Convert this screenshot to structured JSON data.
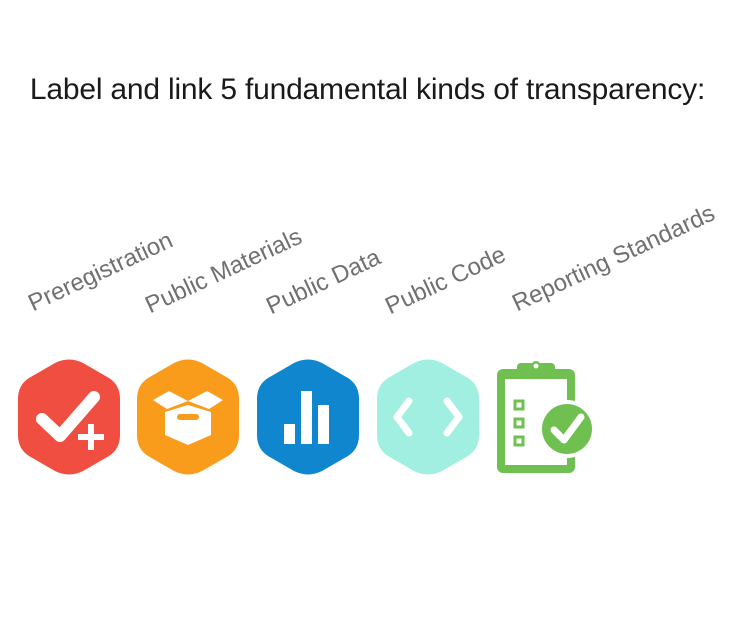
{
  "heading": "Label and link 5 fundamental kinds of transparency:",
  "badges": [
    {
      "label": "Preregistration",
      "icon": "preregistration-check-plus-icon",
      "color": "#ef4e40"
    },
    {
      "label": "Public Materials",
      "icon": "open-box-icon",
      "color": "#f99c1c"
    },
    {
      "label": "Public Data",
      "icon": "bar-chart-icon",
      "color": "#0f86cd"
    },
    {
      "label": "Public Code",
      "icon": "code-brackets-icon",
      "color": "#a0efe1"
    },
    {
      "label": "Reporting Standards",
      "icon": "clipboard-checklist-icon",
      "color": "#6fc051"
    }
  ]
}
